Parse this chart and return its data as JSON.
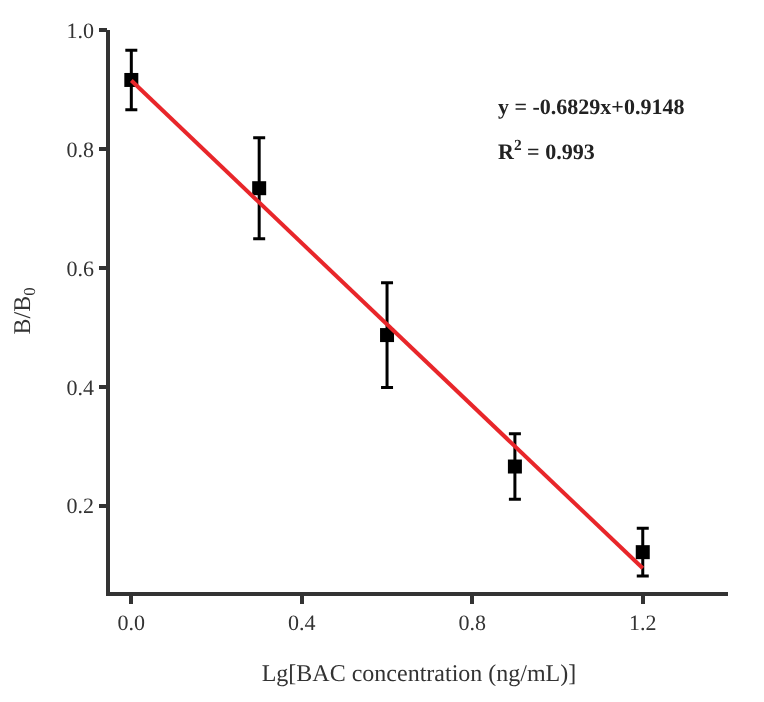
{
  "chart_data": {
    "type": "scatter",
    "xlabel": "Lg[BAC concentration (ng/mL)]",
    "ylabel": "B/B$_{0}$",
    "annotations": [
      "y = -0.6829x+0.9148",
      "R$^{2}$ = 0.993"
    ],
    "x": [
      0,
      0.3,
      0.6,
      0.9,
      1.2
    ],
    "series": [
      {
        "color": "#000000",
        "values": [
          0.916,
          0.734,
          0.487,
          0.266,
          0.122
        ],
        "errors": [
          0.05,
          0.085,
          0.088,
          0.055,
          0.04
        ],
        "marker": "square"
      },
      {
        "type": "line",
        "color": "#e8262a",
        "x": [
          0,
          1.2
        ],
        "values": [
          0.915,
          0.095
        ],
        "marker": "none"
      }
    ],
    "xlim": [
      -0.05,
      1.4
    ],
    "ylim": [
      0.055,
      1.0
    ],
    "xticks": [
      {
        "value": 0,
        "label": "0.0"
      },
      0.4,
      0.8,
      1.2
    ],
    "yticks": [
      0.2,
      0.4,
      0.6,
      0.8,
      {
        "value": 1,
        "label": "1.0"
      }
    ]
  }
}
